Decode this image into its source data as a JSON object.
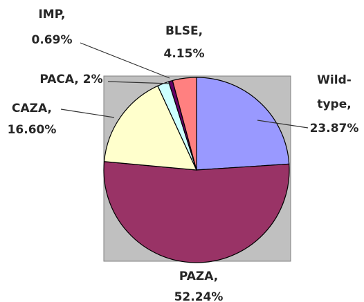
{
  "chart_data": {
    "type": "pie",
    "categories": [
      [
        "Wild-",
        "type,"
      ],
      [
        "PAZA,"
      ],
      [
        "CAZA,"
      ],
      [
        "PACA,"
      ],
      [
        "IMP,"
      ],
      [
        "BLSE,"
      ]
    ],
    "values": [
      23.87,
      52.24,
      16.6,
      2,
      0.69,
      4.15
    ],
    "value_labels": [
      "23.87%",
      "52.24%",
      "16.60%",
      "2%",
      "0.69%",
      "4.15%"
    ],
    "colors": [
      "#9999ff",
      "#993366",
      "#ffffcc",
      "#ccffff",
      "#660066",
      "#ff8080"
    ]
  }
}
